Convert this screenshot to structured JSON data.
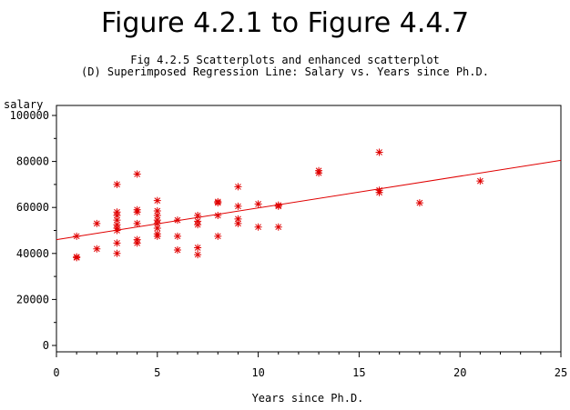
{
  "colors": {
    "background": "#ffffff",
    "frame": "#000000",
    "points": "#e00000",
    "regression_line": "#e00000"
  },
  "chart_data": {
    "type": "scatter",
    "title": "Figure 4.2.1 to Figure 4.4.7",
    "subtitle_1": "Fig 4.2.5 Scatterplots and enhanced scatterplot",
    "subtitle_2": "(D) Superimposed Regression Line: Salary vs. Years since Ph.D.",
    "xlabel": "Years since Ph.D.",
    "ylabel": "salary",
    "xlim": [
      0,
      25
    ],
    "ylim": [
      0,
      100000
    ],
    "x_ticks": [
      0,
      5,
      10,
      15,
      20,
      25
    ],
    "x_tick_labels": [
      "0",
      "5",
      "10",
      "15",
      "20",
      "25"
    ],
    "y_ticks": [
      0,
      20000,
      40000,
      60000,
      80000,
      100000
    ],
    "y_tick_labels": [
      "0",
      "20000",
      "40000",
      "60000",
      "80000",
      "100000"
    ],
    "marker": "asterisk",
    "grid": false,
    "points": [
      {
        "x": 1,
        "y": 38500
      },
      {
        "x": 1,
        "y": 38200
      },
      {
        "x": 1,
        "y": 47500
      },
      {
        "x": 2,
        "y": 42000
      },
      {
        "x": 2,
        "y": 53000
      },
      {
        "x": 3,
        "y": 40000
      },
      {
        "x": 3,
        "y": 44500
      },
      {
        "x": 3,
        "y": 50000
      },
      {
        "x": 3,
        "y": 51000
      },
      {
        "x": 3,
        "y": 52500
      },
      {
        "x": 3,
        "y": 54500
      },
      {
        "x": 3,
        "y": 56500
      },
      {
        "x": 3,
        "y": 58000
      },
      {
        "x": 3,
        "y": 70000
      },
      {
        "x": 4,
        "y": 44500
      },
      {
        "x": 4,
        "y": 46000
      },
      {
        "x": 4,
        "y": 53000
      },
      {
        "x": 4,
        "y": 58000
      },
      {
        "x": 4,
        "y": 59000
      },
      {
        "x": 4,
        "y": 74500
      },
      {
        "x": 5,
        "y": 47500
      },
      {
        "x": 5,
        "y": 48500
      },
      {
        "x": 5,
        "y": 51000
      },
      {
        "x": 5,
        "y": 53000
      },
      {
        "x": 5,
        "y": 54500
      },
      {
        "x": 5,
        "y": 56500
      },
      {
        "x": 5,
        "y": 58500
      },
      {
        "x": 5,
        "y": 63000
      },
      {
        "x": 6,
        "y": 41500
      },
      {
        "x": 6,
        "y": 47500
      },
      {
        "x": 6,
        "y": 54500
      },
      {
        "x": 7,
        "y": 39500
      },
      {
        "x": 7,
        "y": 42500
      },
      {
        "x": 7,
        "y": 52500
      },
      {
        "x": 7,
        "y": 54000
      },
      {
        "x": 7,
        "y": 56500
      },
      {
        "x": 8,
        "y": 47500
      },
      {
        "x": 8,
        "y": 56500
      },
      {
        "x": 8,
        "y": 62000
      },
      {
        "x": 8,
        "y": 62500
      },
      {
        "x": 9,
        "y": 53000
      },
      {
        "x": 9,
        "y": 55000
      },
      {
        "x": 9,
        "y": 60500
      },
      {
        "x": 9,
        "y": 69000
      },
      {
        "x": 10,
        "y": 51500
      },
      {
        "x": 10,
        "y": 61500
      },
      {
        "x": 11,
        "y": 51500
      },
      {
        "x": 11,
        "y": 60500
      },
      {
        "x": 11,
        "y": 61000
      },
      {
        "x": 13,
        "y": 75000
      },
      {
        "x": 13,
        "y": 76000
      },
      {
        "x": 16,
        "y": 66500
      },
      {
        "x": 16,
        "y": 67500
      },
      {
        "x": 16,
        "y": 84000
      },
      {
        "x": 18,
        "y": 62000
      },
      {
        "x": 21,
        "y": 71500
      }
    ],
    "regression_line": {
      "x": [
        0,
        25
      ],
      "y": [
        46000,
        80500
      ]
    }
  }
}
